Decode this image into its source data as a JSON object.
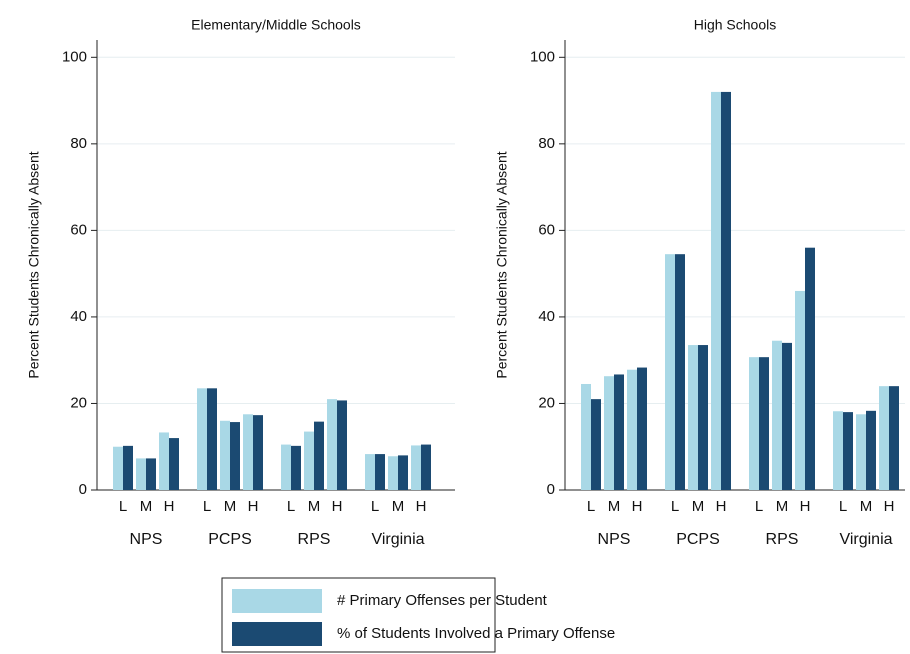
{
  "chart_data": [
    {
      "type": "bar",
      "title": "Elementary/Middle Schools",
      "y_label": "Percent Students Chronically Absent",
      "categories": [
        "L",
        "M",
        "H",
        "L",
        "M",
        "H",
        "L",
        "M",
        "H",
        "L",
        "M",
        "H"
      ],
      "groups": [
        "NPS",
        "PCPS",
        "RPS",
        "Virginia"
      ],
      "ylim": [
        0,
        104
      ],
      "yticks": [
        0,
        20,
        40,
        60,
        80,
        100
      ],
      "grid": true,
      "series": [
        {
          "name": "# Primary Offenses per Student",
          "color": "#a9d8e6",
          "values": [
            10,
            7.3,
            13.3,
            23.5,
            16,
            17.5,
            10.5,
            13.5,
            21,
            8.3,
            7.8,
            10.3
          ]
        },
        {
          "name": "% of Students Involved a Primary Offense",
          "color": "#1b4a72",
          "values": [
            10.2,
            7.3,
            12,
            23.5,
            15.7,
            17.3,
            10.2,
            15.8,
            20.7,
            8.3,
            8,
            10.5
          ]
        }
      ]
    },
    {
      "type": "bar",
      "title": "High Schools",
      "y_label": "Percent Students Chronically Absent",
      "categories": [
        "L",
        "M",
        "H",
        "L",
        "M",
        "H",
        "L",
        "M",
        "H",
        "L",
        "M",
        "H"
      ],
      "groups": [
        "NPS",
        "PCPS",
        "RPS",
        "Virginia"
      ],
      "ylim": [
        0,
        104
      ],
      "yticks": [
        0,
        20,
        40,
        60,
        80,
        100
      ],
      "grid": true,
      "series": [
        {
          "color": "#a9d8e6",
          "values": [
            24.5,
            26.3,
            27.8,
            54.5,
            33.5,
            92,
            30.7,
            34.5,
            46,
            18.2,
            17.5,
            24
          ]
        },
        {
          "color": "#1b4a72",
          "values": [
            21,
            26.7,
            28.3,
            54.5,
            33.5,
            92,
            30.7,
            34,
            56,
            18,
            18.3,
            24
          ]
        }
      ]
    }
  ]
}
